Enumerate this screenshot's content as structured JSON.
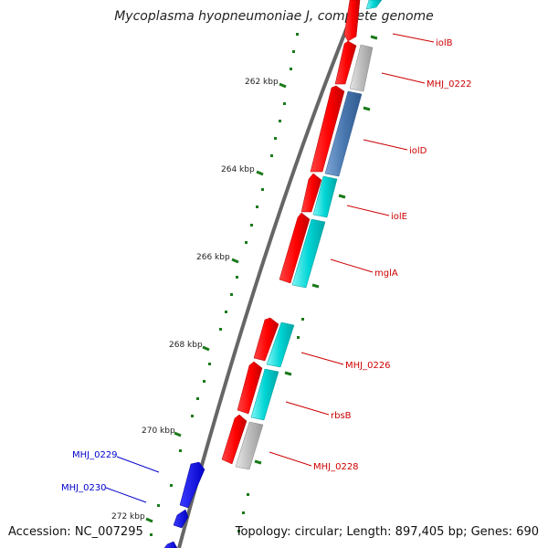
{
  "title": "Mycoplasma hyopneumoniae J, complete genome",
  "footer": {
    "accession": "Accession: NC_007295",
    "summary": "Topology: circular; Length: 897,405 bp; Genes: 690"
  },
  "ticks": [
    "262 kbp",
    "264 kbp",
    "266 kbp",
    "268 kbp",
    "270 kbp",
    "272 kbp"
  ],
  "genes": [
    {
      "name": "iolB",
      "color": "#cc0000",
      "side": "right"
    },
    {
      "name": "MHJ_0222",
      "color": "#cc0000",
      "side": "right"
    },
    {
      "name": "iolD",
      "color": "#cc0000",
      "side": "right"
    },
    {
      "name": "iolE",
      "color": "#cc0000",
      "side": "right"
    },
    {
      "name": "mglA",
      "color": "#cc0000",
      "side": "right"
    },
    {
      "name": "MHJ_0226",
      "color": "#cc0000",
      "side": "right"
    },
    {
      "name": "rbsB",
      "color": "#cc0000",
      "side": "right"
    },
    {
      "name": "MHJ_0228",
      "color": "#cc0000",
      "side": "right"
    },
    {
      "name": "MHJ_0229",
      "color": "#0000cc",
      "side": "left"
    },
    {
      "name": "MHJ_0230",
      "color": "#0000cc",
      "side": "left"
    }
  ],
  "colors": {
    "forward_cds": "#ff0000",
    "reverse_cds": "#0000ff",
    "cog_cyan": "#00d5d5",
    "cog_gray": "#bbbbbb",
    "cog_steel": "#4a78b0",
    "tick_green": "#1a7a1a",
    "backbone": "#666666"
  }
}
